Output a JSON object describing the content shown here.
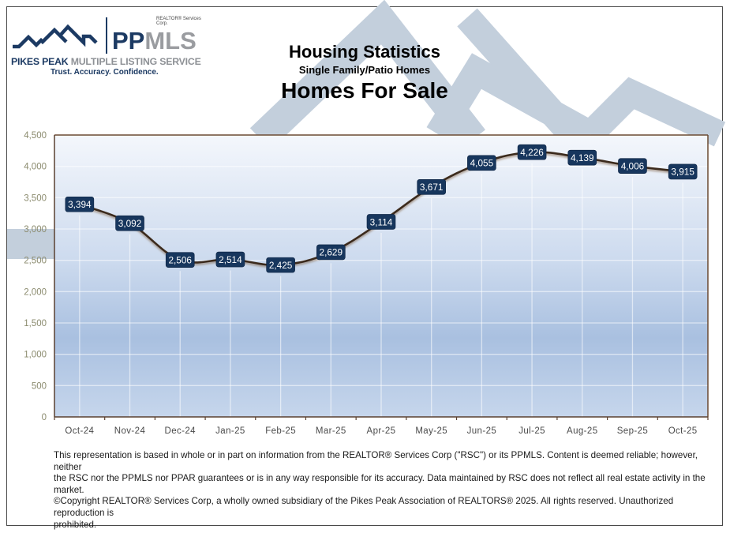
{
  "logo": {
    "corp_label": "REALTOR® Services Corp.",
    "brand_pp": "PP",
    "brand_mls": "MLS",
    "name_bold": "PIKES PEAK",
    "name_rest": "MULTIPLE LISTING SERVICE",
    "tagline": "Trust. Accuracy. Confidence."
  },
  "header": {
    "title": "Housing Statistics",
    "subtitle": "Single Family/Patio Homes",
    "metric": "Homes For Sale"
  },
  "colors": {
    "brand_navy": "#1c3a63",
    "brand_gray": "#9a9ca0",
    "watermark": "#c3cfdc",
    "label_box": "#17365d",
    "line": "#3b2a1e",
    "axis_text": "#8b8b6e",
    "plot_top": "#f4f7fc",
    "plot_mid": "#a9c0e0",
    "plot_bottom": "#c6d6ec"
  },
  "chart_data": {
    "type": "line",
    "title": "Homes For Sale",
    "subtitle": "Single Family/Patio Homes",
    "xlabel": "",
    "ylabel": "",
    "categories": [
      "Oct-24",
      "Nov-24",
      "Dec-24",
      "Jan-25",
      "Feb-25",
      "Mar-25",
      "Apr-25",
      "May-25",
      "Jun-25",
      "Jul-25",
      "Aug-25",
      "Sep-25",
      "Oct-25"
    ],
    "series": [
      {
        "name": "Homes For Sale",
        "values": [
          3394,
          3092,
          2506,
          2514,
          2425,
          2629,
          3114,
          3671,
          4055,
          4226,
          4139,
          4006,
          3915
        ]
      }
    ],
    "data_labels": [
      "3,394",
      "3,092",
      "2,506",
      "2,514",
      "2,425",
      "2,629",
      "3,114",
      "3,671",
      "4,055",
      "4,226",
      "4,139",
      "4,006",
      "3,915"
    ],
    "ylim": [
      0,
      4500
    ],
    "yticks": [
      0,
      500,
      1000,
      1500,
      2000,
      2500,
      3000,
      3500,
      4000,
      4500
    ],
    "ytick_labels": [
      "0",
      "500",
      "1,000",
      "1,500",
      "2,000",
      "2,500",
      "3,000",
      "3,500",
      "4,000",
      "4,500"
    ],
    "grid": true,
    "legend": "none"
  },
  "disclaimer": {
    "line1": "This representation is based in whole or in part on information from the REALTOR® Services Corp (\"RSC\") or its PPMLS. Content is deemed reliable;  however, neither",
    "line2": "the RSC nor the PPMLS nor PPAR guarantees or is in any way responsible for its accuracy. Data maintained by RSC does not reflect all real estate activity in the market.",
    "line3": "©Copyright REALTOR® Services Corp, a wholly owned subsidiary of the Pikes Peak Association of REALTORS® 2025. All rights reserved. Unauthorized reproduction is",
    "line4": "prohibited."
  }
}
